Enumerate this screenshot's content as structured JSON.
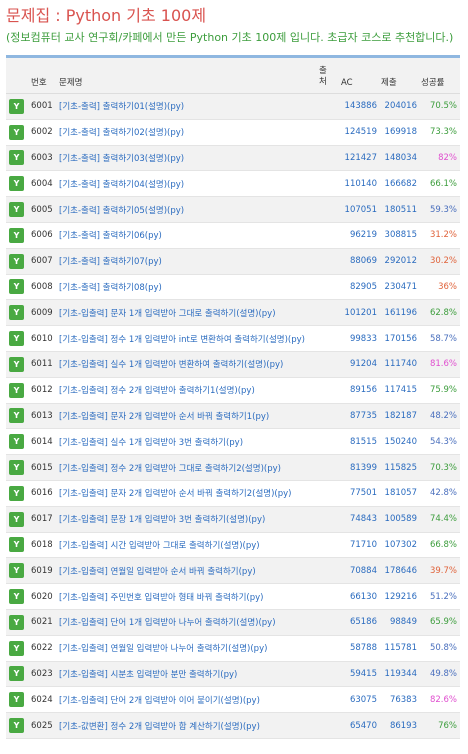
{
  "page": {
    "title": "문제집 : Python 기초 100제",
    "subtitle": "(정보컴퓨터 교사 연구회/카페에서 만든 Python 기초 100제 입니다. 초급자 코스로 추천합니다.)"
  },
  "table": {
    "headers": {
      "id": "번호",
      "name": "문제명",
      "source": "출처",
      "ac": "AC",
      "submissions": "제출",
      "rate": "성공률"
    },
    "badge_label": "Y",
    "rows": [
      {
        "id": "6001",
        "name": "[기초-출력] 출력하기01(설명)(py)",
        "ac": "143886",
        "sub": "204016",
        "rate": "70.5%",
        "rate_color": "green"
      },
      {
        "id": "6002",
        "name": "[기초-출력] 출력하기02(설명)(py)",
        "ac": "124519",
        "sub": "169918",
        "rate": "73.3%",
        "rate_color": "green"
      },
      {
        "id": "6003",
        "name": "[기초-출력] 출력하기03(설명)(py)",
        "ac": "121427",
        "sub": "148034",
        "rate": "82%",
        "rate_color": "pink"
      },
      {
        "id": "6004",
        "name": "[기초-출력] 출력하기04(설명)(py)",
        "ac": "110140",
        "sub": "166682",
        "rate": "66.1%",
        "rate_color": "green"
      },
      {
        "id": "6005",
        "name": "[기초-출력] 출력하기05(설명)(py)",
        "ac": "107051",
        "sub": "180511",
        "rate": "59.3%",
        "rate_color": "blue"
      },
      {
        "id": "6006",
        "name": "[기초-출력] 출력하기06(py)",
        "ac": "96219",
        "sub": "308815",
        "rate": "31.2%",
        "rate_color": "red"
      },
      {
        "id": "6007",
        "name": "[기초-출력] 출력하기07(py)",
        "ac": "88069",
        "sub": "292012",
        "rate": "30.2%",
        "rate_color": "red"
      },
      {
        "id": "6008",
        "name": "[기초-출력] 출력하기08(py)",
        "ac": "82905",
        "sub": "230471",
        "rate": "36%",
        "rate_color": "red"
      },
      {
        "id": "6009",
        "name": "[기초-입출력] 문자 1개 입력받아 그대로 출력하기(설명)(py)",
        "ac": "101201",
        "sub": "161196",
        "rate": "62.8%",
        "rate_color": "green"
      },
      {
        "id": "6010",
        "name": "[기초-입출력] 정수 1개 입력받아 int로 변환하여 출력하기(설명)(py)",
        "ac": "99833",
        "sub": "170156",
        "rate": "58.7%",
        "rate_color": "blue"
      },
      {
        "id": "6011",
        "name": "[기초-입출력] 실수 1개 입력받아 변환하여 출력하기(설명)(py)",
        "ac": "91204",
        "sub": "111740",
        "rate": "81.6%",
        "rate_color": "pink"
      },
      {
        "id": "6012",
        "name": "[기초-입출력] 정수 2개 입력받아 출력하기1(설명)(py)",
        "ac": "89156",
        "sub": "117415",
        "rate": "75.9%",
        "rate_color": "green"
      },
      {
        "id": "6013",
        "name": "[기초-입출력] 문자 2개 입력받아 순서 바꿔 출력하기1(py)",
        "ac": "87735",
        "sub": "182187",
        "rate": "48.2%",
        "rate_color": "blue"
      },
      {
        "id": "6014",
        "name": "[기초-입출력] 실수 1개 입력받아 3번 출력하기(py)",
        "ac": "81515",
        "sub": "150240",
        "rate": "54.3%",
        "rate_color": "blue"
      },
      {
        "id": "6015",
        "name": "[기초-입출력] 정수 2개 입력받아 그대로 출력하기2(설명)(py)",
        "ac": "81399",
        "sub": "115825",
        "rate": "70.3%",
        "rate_color": "green"
      },
      {
        "id": "6016",
        "name": "[기초-입출력] 문자 2개 입력받아 순서 바꿔 출력하기2(설명)(py)",
        "ac": "77501",
        "sub": "181057",
        "rate": "42.8%",
        "rate_color": "blue"
      },
      {
        "id": "6017",
        "name": "[기초-입출력] 문장 1개 입력받아 3번 출력하기(설명)(py)",
        "ac": "74843",
        "sub": "100589",
        "rate": "74.4%",
        "rate_color": "green"
      },
      {
        "id": "6018",
        "name": "[기초-입출력] 시간 입력받아 그대로 출력하기(설명)(py)",
        "ac": "71710",
        "sub": "107302",
        "rate": "66.8%",
        "rate_color": "green"
      },
      {
        "id": "6019",
        "name": "[기초-입출력] 연월일 입력받아 순서 바꿔 출력하기(py)",
        "ac": "70884",
        "sub": "178646",
        "rate": "39.7%",
        "rate_color": "red"
      },
      {
        "id": "6020",
        "name": "[기초-입출력] 주민번호 입력받아 형태 바꿔 출력하기(py)",
        "ac": "66130",
        "sub": "129216",
        "rate": "51.2%",
        "rate_color": "blue"
      },
      {
        "id": "6021",
        "name": "[기초-입출력] 단어 1개 입력받아 나누어 출력하기(설명)(py)",
        "ac": "65186",
        "sub": "98849",
        "rate": "65.9%",
        "rate_color": "green"
      },
      {
        "id": "6022",
        "name": "[기초-입출력] 연월일 입력받아 나누어 출력하기(설명)(py)",
        "ac": "58788",
        "sub": "115781",
        "rate": "50.8%",
        "rate_color": "blue"
      },
      {
        "id": "6023",
        "name": "[기초-입출력] 시분초 입력받아 분만 출력하기(py)",
        "ac": "59415",
        "sub": "119344",
        "rate": "49.8%",
        "rate_color": "blue"
      },
      {
        "id": "6024",
        "name": "[기초-입출력] 단어 2개 입력받아 이어 붙이기(설명)(py)",
        "ac": "63075",
        "sub": "76383",
        "rate": "82.6%",
        "rate_color": "pink"
      },
      {
        "id": "6025",
        "name": "[기초-값변환] 정수 2개 입력받아 합 계산하기(설명)(py)",
        "ac": "65470",
        "sub": "86193",
        "rate": "76%",
        "rate_color": "green"
      }
    ]
  },
  "colors": {
    "title": "#d9534f",
    "subtitle": "#3c9d3c",
    "badge": "#49a942",
    "link": "#2a6bbf",
    "header_bar": "#8fb7e0"
  }
}
